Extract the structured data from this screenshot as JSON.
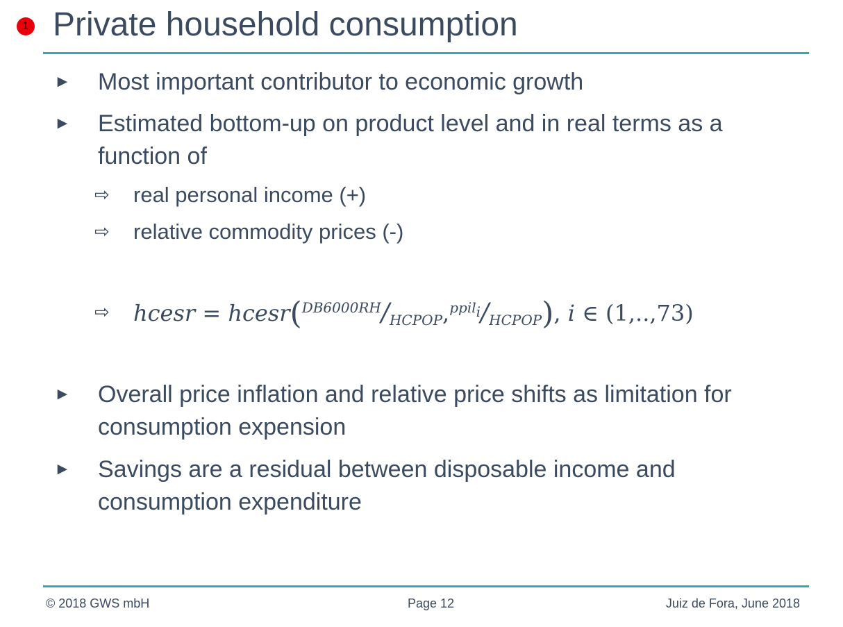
{
  "slide": {
    "badge": "1",
    "title": "Private household consumption"
  },
  "bullets": [
    {
      "marker": "►",
      "text": "Most important contributor to economic growth"
    },
    {
      "marker": "►",
      "text": "Estimated bottom-up on product level and in real terms as a function of"
    },
    {
      "marker": "►",
      "text": "Overall price inflation and relative price shifts as limitation for consumption expension"
    },
    {
      "marker": "►",
      "text": "Savings are a residual between disposable income and consumption expenditure"
    }
  ],
  "sub_items": [
    {
      "marker": "⇨",
      "text": "real personal income (+)"
    },
    {
      "marker": "⇨",
      "text": "relative commodity prices (-)"
    }
  ],
  "formula": {
    "marker": "⇨",
    "lhs": "hcesr",
    "eq": "=",
    "func": "hcesr",
    "open": "(",
    "num1": "DB6000RH",
    "slash": "/",
    "den1": "HCPOP",
    "comma": ",",
    "num2": "ppil",
    "num2_sub": "i",
    "den2": "HCPOP",
    "close": ")",
    "sep": ",",
    "index": "i",
    "elem": "∈",
    "range": "(1,..,73)"
  },
  "footer": {
    "left": "© 2018 GWS mbH",
    "center": "Page 12",
    "right": "Juiz de Fora, June 2018"
  }
}
